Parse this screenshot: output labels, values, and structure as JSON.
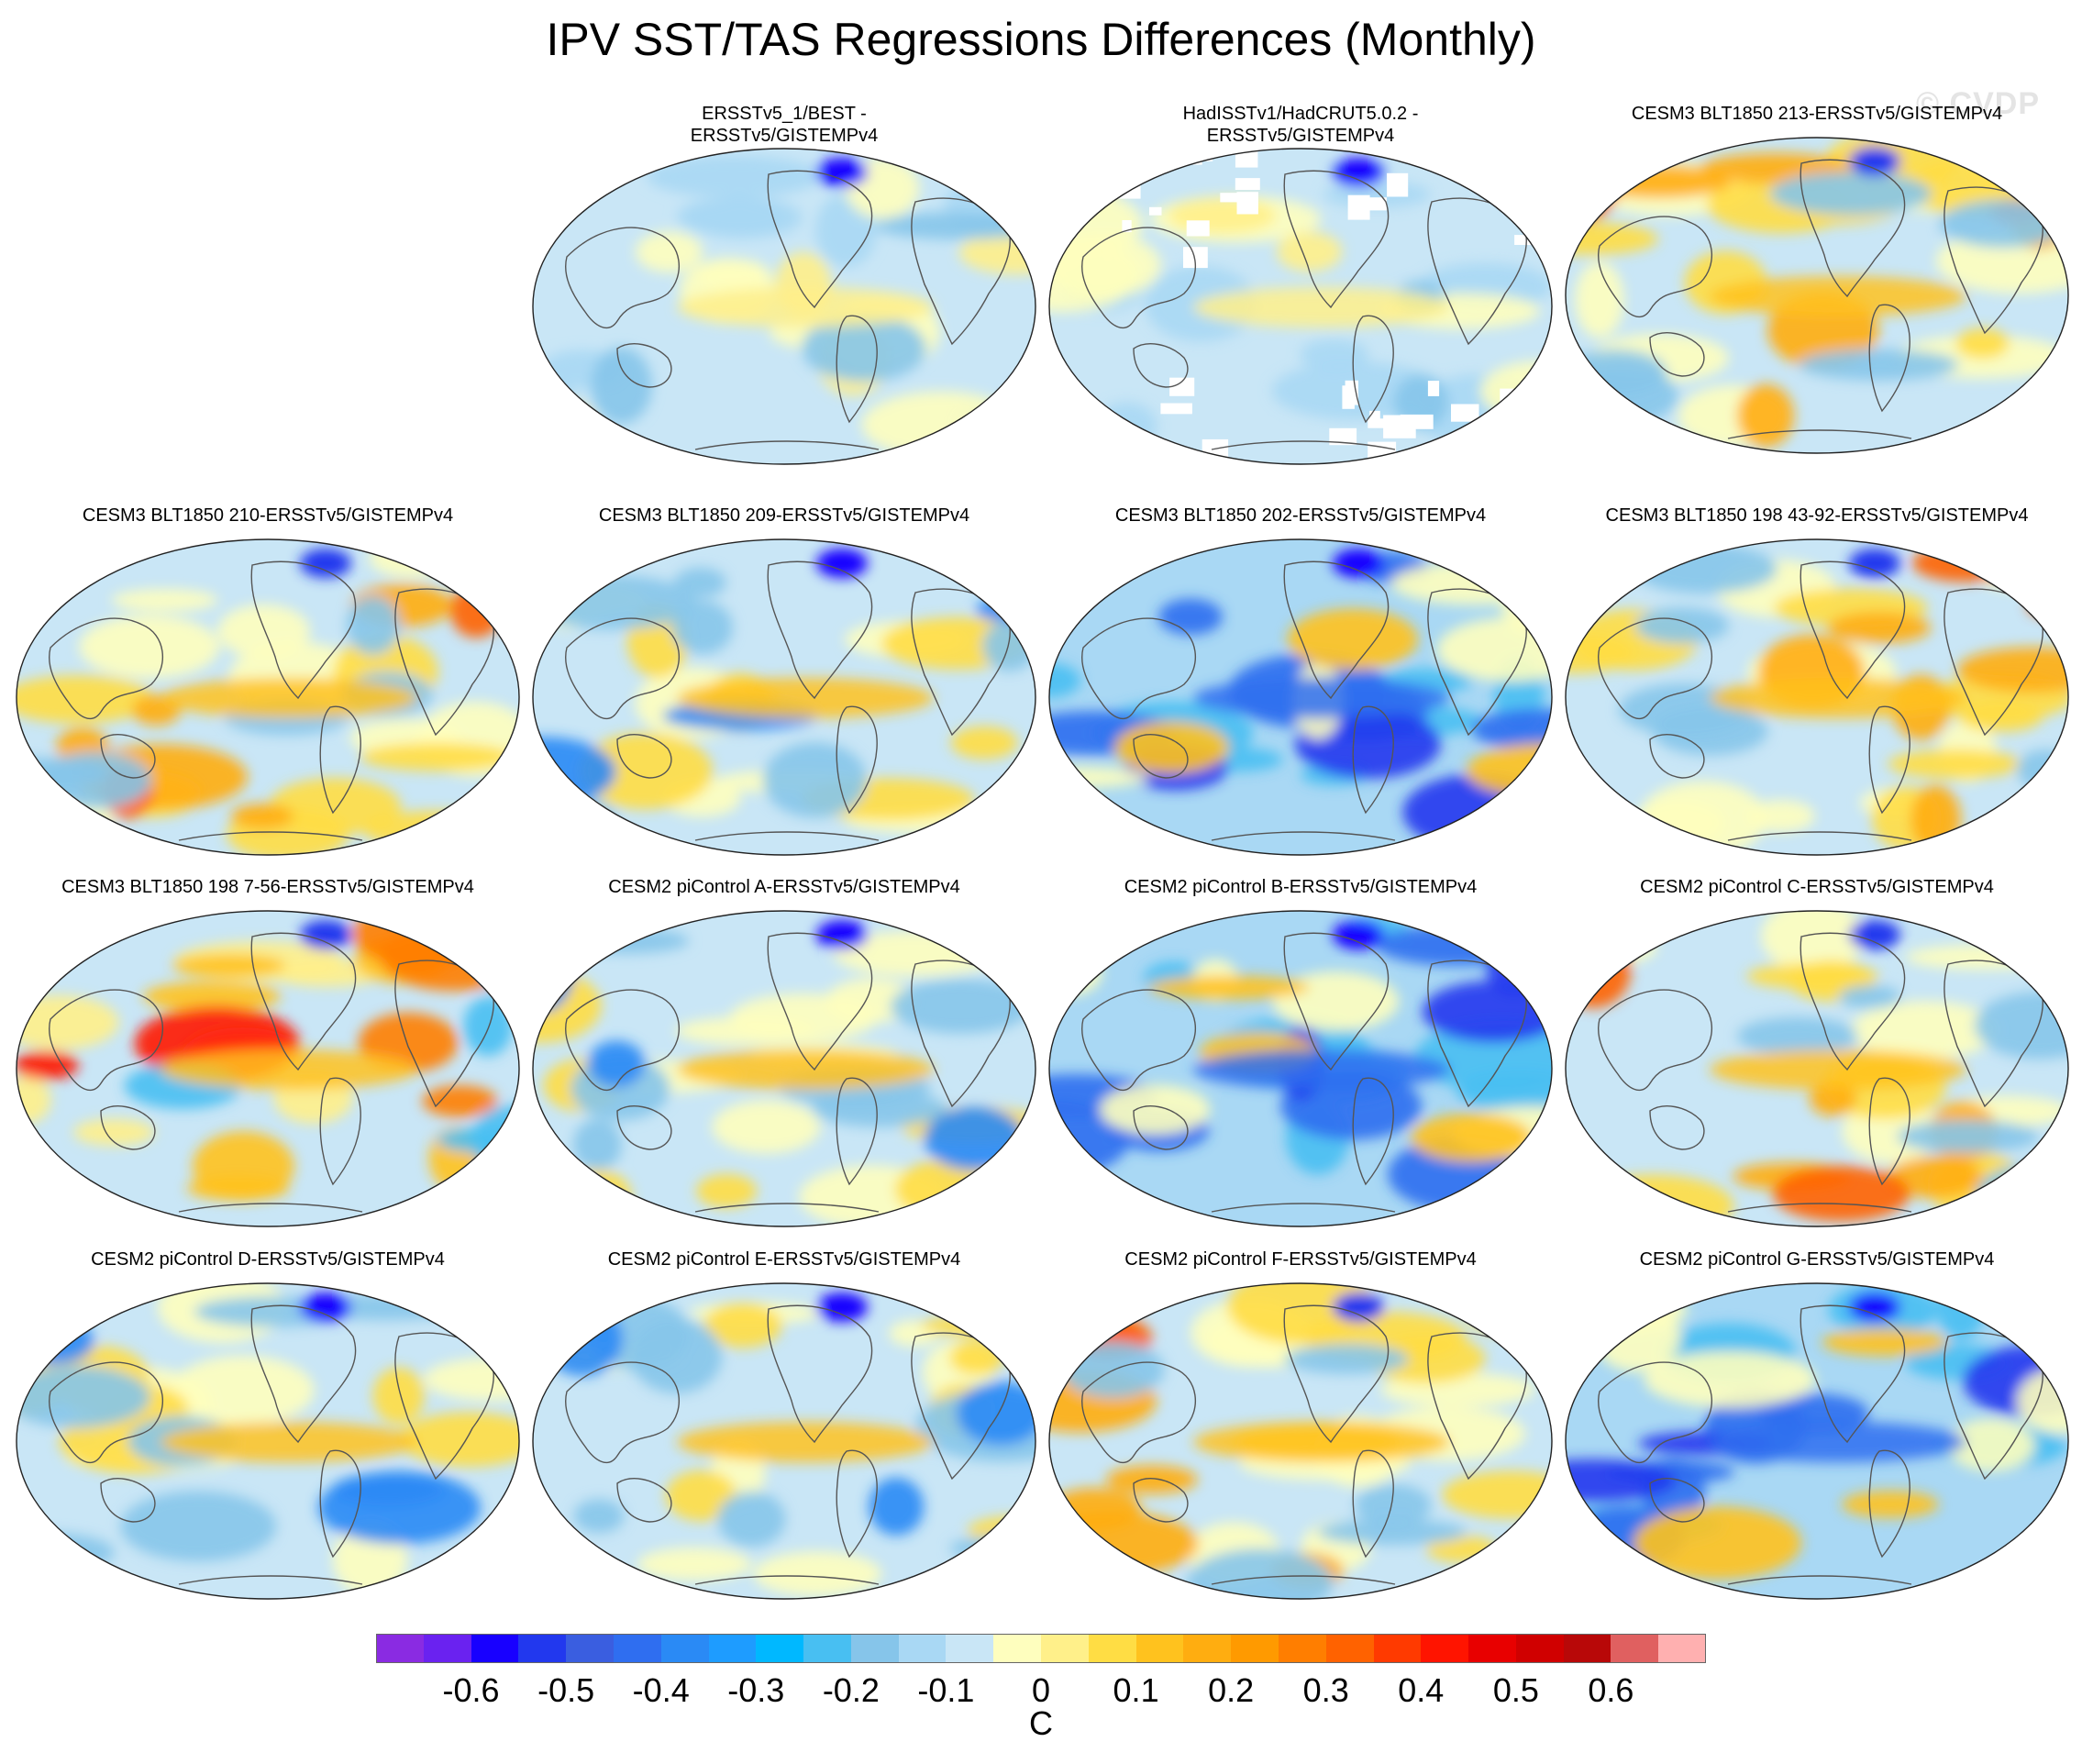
{
  "title": "IPV SST/TAS Regressions Differences (Monthly)",
  "watermark": "© CVDP",
  "panels": [
    {
      "label": "ERSSTv5_1/BEST -\nERSSTv5/GISTEMPv4",
      "style": "obs1",
      "missing": false
    },
    {
      "label": "HadISSTv1/HadCRUT5.0.2 -\nERSSTv5/GISTEMPv4",
      "style": "obs2",
      "missing": true
    },
    {
      "label": "CESM3 BLT1850 213-ERSSTv5/GISTEMPv4",
      "style": "warm",
      "missing": false
    },
    {
      "label": "CESM3 BLT1850 210-ERSSTv5/GISTEMPv4",
      "style": "warm",
      "missing": false
    },
    {
      "label": "CESM3 BLT1850 209-ERSSTv5/GISTEMPv4",
      "style": "mixed",
      "missing": false
    },
    {
      "label": "CESM3 BLT1850 202-ERSSTv5/GISTEMPv4",
      "style": "cold",
      "missing": false
    },
    {
      "label": "CESM3 BLT1850 198 43-92-ERSSTv5/GISTEMPv4",
      "style": "warm",
      "missing": false
    },
    {
      "label": "CESM3 BLT1850 198 7-56-ERSSTv5/GISTEMPv4",
      "style": "hot",
      "missing": false
    },
    {
      "label": "CESM2 piControl A-ERSSTv5/GISTEMPv4",
      "style": "mixed",
      "missing": false
    },
    {
      "label": "CESM2 piControl B-ERSSTv5/GISTEMPv4",
      "style": "cold",
      "missing": false
    },
    {
      "label": "CESM2 piControl C-ERSSTv5/GISTEMPv4",
      "style": "warm",
      "missing": false
    },
    {
      "label": "CESM2 piControl D-ERSSTv5/GISTEMPv4",
      "style": "mixed",
      "missing": false
    },
    {
      "label": "CESM2 piControl E-ERSSTv5/GISTEMPv4",
      "style": "mixed",
      "missing": false
    },
    {
      "label": "CESM2 piControl F-ERSSTv5/GISTEMPv4",
      "style": "warm",
      "missing": false
    },
    {
      "label": "CESM2 piControl G-ERSSTv5/GISTEMPv4",
      "style": "cold",
      "missing": false
    }
  ],
  "colorbar": {
    "unit": "C",
    "colors": [
      "#8a2be2",
      "#6a22f0",
      "#1800ff",
      "#2238ee",
      "#3a5ee0",
      "#2f6ef0",
      "#2a8af5",
      "#1e9cff",
      "#00b8ff",
      "#48bff2",
      "#86c5ea",
      "#a9d8f4",
      "#c9e6f6",
      "#fefebe",
      "#fff08a",
      "#ffdd44",
      "#ffc21e",
      "#ffad10",
      "#ff9a00",
      "#ff7e00",
      "#ff6200",
      "#ff3a00",
      "#ff1400",
      "#e80000",
      "#d00000",
      "#b80808",
      "#e06060",
      "#ffb0b0"
    ],
    "tick_values": [
      -0.6,
      -0.5,
      -0.4,
      -0.3,
      -0.2,
      -0.1,
      0,
      0.1,
      0.2,
      0.3,
      0.4,
      0.5,
      0.6
    ],
    "tick_labels": [
      "-0.6",
      "-0.5",
      "-0.4",
      "-0.3",
      "-0.2",
      "-0.1",
      "0",
      "0.1",
      "0.2",
      "0.3",
      "0.4",
      "0.5",
      "0.6"
    ],
    "min": -0.7,
    "max": 0.7
  }
}
